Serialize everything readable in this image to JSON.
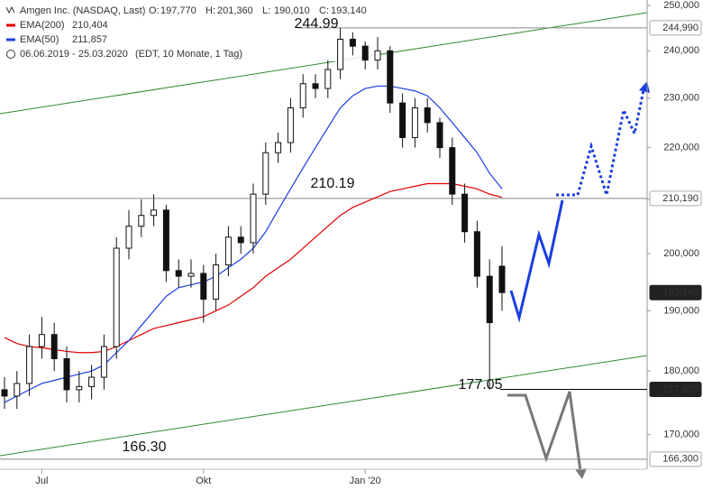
{
  "chart_data": {
    "type": "candlestick",
    "header": {
      "name": "Amgen Inc. (NASDAQ, Last)",
      "ohlc": [
        {
          "key": "O:",
          "value": {
            "value": 197.77,
            "label": "197,770"
          }
        },
        {
          "key": "H:",
          "value": {
            "value": 201.36,
            "label": "201,360"
          }
        },
        {
          "key": "L:",
          "value": {
            "value": 190.01,
            "label": "190,010"
          }
        },
        {
          "key": "C:",
          "value": {
            "value": 193.14,
            "label": "193,140"
          }
        }
      ],
      "range": "06.06.2019 - 25.03.2020",
      "range_note": "(EDT, 10 Monate, 1 Tag)"
    },
    "categories": [
      null,
      null,
      null,
      "Jul",
      null,
      null,
      null,
      null,
      null,
      null,
      null,
      null,
      null,
      null,
      null,
      null,
      "Okt",
      null,
      null,
      null,
      null,
      null,
      null,
      null,
      null,
      null,
      null,
      null,
      null,
      "Jan '20",
      null,
      null,
      null,
      null,
      null,
      null,
      null,
      null,
      null,
      null,
      null
    ],
    "open": [
      177,
      176,
      178,
      184,
      186,
      182,
      177,
      177.5,
      179,
      184,
      201,
      205,
      207,
      208,
      197,
      196,
      196.5,
      192,
      198,
      203,
      202,
      211,
      219,
      221,
      228,
      233,
      232,
      236,
      242.5,
      241,
      238,
      240,
      229,
      222,
      228,
      225,
      220,
      211,
      204,
      196,
      197.77
    ],
    "high": [
      179,
      180,
      186,
      189,
      188,
      184,
      180,
      181,
      186,
      203,
      208,
      210,
      211,
      209,
      199,
      199,
      198,
      200,
      205,
      205,
      213,
      221,
      223,
      230,
      235,
      235,
      238,
      244.99,
      244,
      242,
      243,
      241,
      231,
      230,
      230,
      226,
      222,
      213,
      206,
      199,
      201.36
    ],
    "low": [
      174,
      174,
      176,
      182,
      180,
      175,
      175,
      175.5,
      177,
      182,
      199,
      203,
      205,
      195,
      194,
      194,
      188,
      190,
      196,
      200,
      200,
      209,
      217,
      219,
      226,
      230,
      230,
      234,
      239,
      236,
      236,
      227,
      220,
      220,
      223,
      218,
      209,
      202,
      194,
      177.05,
      190.01
    ],
    "close": [
      176,
      178,
      184,
      186,
      182,
      177,
      177.5,
      179,
      184,
      201,
      205,
      207,
      208,
      197,
      196,
      196.5,
      192,
      198,
      203,
      202,
      211,
      219,
      221,
      228,
      233,
      232,
      236,
      242.5,
      241,
      238,
      240,
      229,
      222,
      228,
      225,
      220,
      211,
      204,
      196,
      188,
      193.14
    ],
    "series": [
      {
        "name": "EMA(200)",
        "color": "#e00000",
        "last": {
          "value": 210.404,
          "label": "210,404"
        },
        "values": [
          185.5,
          184.5,
          184,
          183.8,
          183.5,
          183.2,
          183,
          183,
          183.2,
          184,
          185,
          186,
          187,
          187.5,
          188,
          188.5,
          189,
          190,
          191,
          192.5,
          194,
          196,
          197.5,
          199,
          201,
          203,
          205,
          207,
          208.5,
          209.5,
          210.5,
          211.5,
          212,
          212.5,
          213,
          213,
          213,
          212.5,
          212,
          211,
          210.4
        ]
      },
      {
        "name": "EMA(50)",
        "color": "#1a3ee0",
        "last": {
          "value": 211.857,
          "label": "211,857"
        },
        "values": [
          175,
          176,
          177,
          178,
          178.5,
          179,
          179.5,
          180,
          181,
          183,
          185,
          187.5,
          190,
          192.5,
          194,
          194.5,
          195,
          196,
          197.5,
          199,
          201,
          204,
          208,
          212,
          216,
          220,
          224,
          228,
          230.5,
          232,
          232.5,
          232.5,
          232,
          231.5,
          230.5,
          228,
          225,
          222,
          219,
          215,
          212
        ]
      }
    ],
    "ylim": [
      164.8,
      251.2
    ],
    "log_scale": true,
    "yticks": [
      {
        "value": 170,
        "label": "170,000"
      },
      {
        "value": 180,
        "label": "180,000"
      },
      {
        "value": 190,
        "label": "190,000"
      },
      {
        "value": 200,
        "label": "200,000"
      },
      {
        "value": 210,
        "label": "210,000"
      },
      {
        "value": 220,
        "label": "220,000"
      },
      {
        "value": 230,
        "label": "230,000"
      },
      {
        "value": 240,
        "label": "240,000"
      },
      {
        "value": 250,
        "label": "250,000"
      }
    ],
    "levels": [
      {
        "value": 244.99,
        "label": "244,990",
        "note": "244.99",
        "style": "light"
      },
      {
        "value": 210.19,
        "label": "210,190",
        "note": "210.19",
        "style": "light"
      },
      {
        "value": 193.14,
        "label": "193,140",
        "style": "dark"
      },
      {
        "value": 177.05,
        "label": "177,050",
        "note": "177.05",
        "style": "dark"
      },
      {
        "value": 166.3,
        "label": "166,300",
        "note": "166.30",
        "style": "light"
      }
    ]
  }
}
